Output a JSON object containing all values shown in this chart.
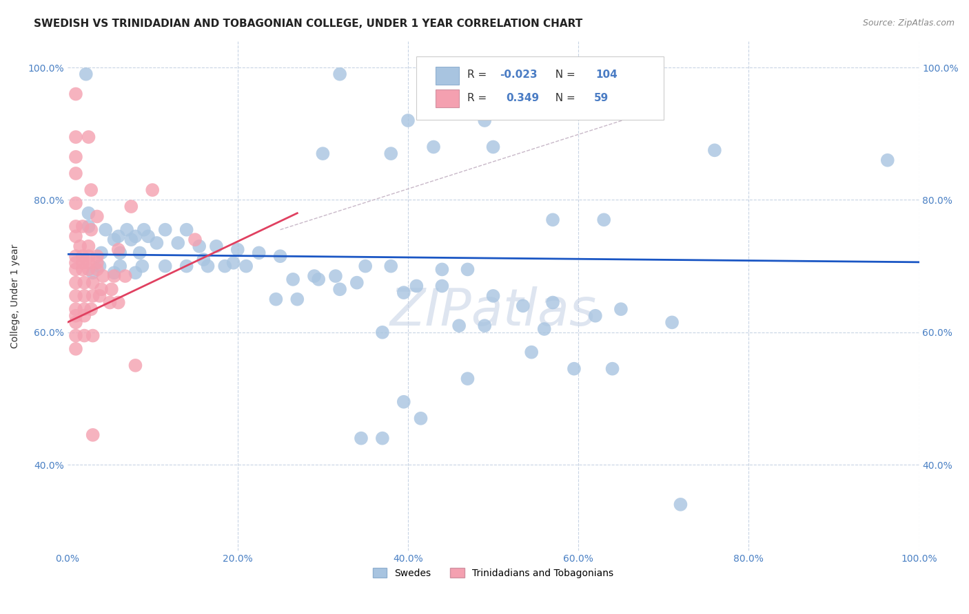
{
  "title": "SWEDISH VS TRINIDADIAN AND TOBAGONIAN COLLEGE, UNDER 1 YEAR CORRELATION CHART",
  "source": "Source: ZipAtlas.com",
  "ylabel": "College, Under 1 year",
  "legend_blue_r": "-0.023",
  "legend_blue_n": "104",
  "legend_pink_r": "0.349",
  "legend_pink_n": "59",
  "blue_color": "#a8c4e0",
  "pink_color": "#f4a0b0",
  "line_blue_color": "#1a56c4",
  "line_pink_color": "#e04060",
  "dash_color": "#c8b8c8",
  "background_color": "#ffffff",
  "grid_color": "#c8d4e4",
  "xlim": [
    0.0,
    1.0
  ],
  "ylim": [
    0.27,
    1.04
  ],
  "xtick_vals": [
    0.0,
    0.2,
    0.4,
    0.6,
    0.8,
    1.0
  ],
  "xtick_labels": [
    "0.0%",
    "20.0%",
    "40.0%",
    "60.0%",
    "80.0%",
    "100.0%"
  ],
  "ytick_vals": [
    0.4,
    0.6,
    0.8,
    1.0
  ],
  "ytick_labels": [
    "40.0%",
    "60.0%",
    "80.0%",
    "100.0%"
  ],
  "blue_scatter": [
    [
      0.022,
      0.99
    ],
    [
      0.32,
      0.99
    ],
    [
      0.4,
      0.92
    ],
    [
      0.49,
      0.92
    ],
    [
      0.43,
      0.88
    ],
    [
      0.5,
      0.88
    ],
    [
      0.76,
      0.875
    ],
    [
      0.3,
      0.87
    ],
    [
      0.38,
      0.87
    ],
    [
      0.025,
      0.78
    ],
    [
      0.57,
      0.77
    ],
    [
      0.63,
      0.77
    ],
    [
      0.025,
      0.76
    ],
    [
      0.045,
      0.755
    ],
    [
      0.07,
      0.755
    ],
    [
      0.09,
      0.755
    ],
    [
      0.115,
      0.755
    ],
    [
      0.14,
      0.755
    ],
    [
      0.06,
      0.745
    ],
    [
      0.08,
      0.745
    ],
    [
      0.095,
      0.745
    ],
    [
      0.055,
      0.74
    ],
    [
      0.075,
      0.74
    ],
    [
      0.105,
      0.735
    ],
    [
      0.13,
      0.735
    ],
    [
      0.155,
      0.73
    ],
    [
      0.175,
      0.73
    ],
    [
      0.2,
      0.725
    ],
    [
      0.04,
      0.72
    ],
    [
      0.062,
      0.72
    ],
    [
      0.085,
      0.72
    ],
    [
      0.225,
      0.72
    ],
    [
      0.25,
      0.715
    ],
    [
      0.16,
      0.71
    ],
    [
      0.195,
      0.705
    ],
    [
      0.038,
      0.7
    ],
    [
      0.062,
      0.7
    ],
    [
      0.088,
      0.7
    ],
    [
      0.115,
      0.7
    ],
    [
      0.14,
      0.7
    ],
    [
      0.165,
      0.7
    ],
    [
      0.185,
      0.7
    ],
    [
      0.21,
      0.7
    ],
    [
      0.35,
      0.7
    ],
    [
      0.38,
      0.7
    ],
    [
      0.44,
      0.695
    ],
    [
      0.47,
      0.695
    ],
    [
      0.03,
      0.69
    ],
    [
      0.055,
      0.69
    ],
    [
      0.08,
      0.69
    ],
    [
      0.29,
      0.685
    ],
    [
      0.315,
      0.685
    ],
    [
      0.265,
      0.68
    ],
    [
      0.295,
      0.68
    ],
    [
      0.34,
      0.675
    ],
    [
      0.41,
      0.67
    ],
    [
      0.44,
      0.67
    ],
    [
      0.32,
      0.665
    ],
    [
      0.395,
      0.66
    ],
    [
      0.5,
      0.655
    ],
    [
      0.245,
      0.65
    ],
    [
      0.27,
      0.65
    ],
    [
      0.57,
      0.645
    ],
    [
      0.535,
      0.64
    ],
    [
      0.65,
      0.635
    ],
    [
      0.62,
      0.625
    ],
    [
      0.71,
      0.615
    ],
    [
      0.46,
      0.61
    ],
    [
      0.49,
      0.61
    ],
    [
      0.56,
      0.605
    ],
    [
      0.37,
      0.6
    ],
    [
      0.545,
      0.57
    ],
    [
      0.595,
      0.545
    ],
    [
      0.64,
      0.545
    ],
    [
      0.47,
      0.53
    ],
    [
      0.395,
      0.495
    ],
    [
      0.415,
      0.47
    ],
    [
      0.345,
      0.44
    ],
    [
      0.37,
      0.44
    ],
    [
      0.72,
      0.34
    ],
    [
      0.963,
      0.86
    ]
  ],
  "pink_scatter": [
    [
      0.01,
      0.96
    ],
    [
      0.01,
      0.895
    ],
    [
      0.025,
      0.895
    ],
    [
      0.01,
      0.865
    ],
    [
      0.01,
      0.84
    ],
    [
      0.028,
      0.815
    ],
    [
      0.1,
      0.815
    ],
    [
      0.01,
      0.795
    ],
    [
      0.075,
      0.79
    ],
    [
      0.035,
      0.775
    ],
    [
      0.01,
      0.76
    ],
    [
      0.018,
      0.76
    ],
    [
      0.028,
      0.755
    ],
    [
      0.01,
      0.745
    ],
    [
      0.15,
      0.74
    ],
    [
      0.015,
      0.73
    ],
    [
      0.025,
      0.73
    ],
    [
      0.06,
      0.725
    ],
    [
      0.01,
      0.715
    ],
    [
      0.018,
      0.715
    ],
    [
      0.025,
      0.715
    ],
    [
      0.035,
      0.715
    ],
    [
      0.01,
      0.705
    ],
    [
      0.018,
      0.705
    ],
    [
      0.025,
      0.705
    ],
    [
      0.035,
      0.705
    ],
    [
      0.01,
      0.695
    ],
    [
      0.018,
      0.695
    ],
    [
      0.025,
      0.695
    ],
    [
      0.035,
      0.695
    ],
    [
      0.042,
      0.685
    ],
    [
      0.055,
      0.685
    ],
    [
      0.068,
      0.685
    ],
    [
      0.01,
      0.675
    ],
    [
      0.02,
      0.675
    ],
    [
      0.03,
      0.675
    ],
    [
      0.04,
      0.665
    ],
    [
      0.052,
      0.665
    ],
    [
      0.01,
      0.655
    ],
    [
      0.02,
      0.655
    ],
    [
      0.03,
      0.655
    ],
    [
      0.038,
      0.655
    ],
    [
      0.05,
      0.645
    ],
    [
      0.06,
      0.645
    ],
    [
      0.01,
      0.635
    ],
    [
      0.02,
      0.635
    ],
    [
      0.028,
      0.635
    ],
    [
      0.01,
      0.625
    ],
    [
      0.02,
      0.625
    ],
    [
      0.01,
      0.615
    ],
    [
      0.01,
      0.595
    ],
    [
      0.02,
      0.595
    ],
    [
      0.03,
      0.595
    ],
    [
      0.01,
      0.575
    ],
    [
      0.08,
      0.55
    ],
    [
      0.03,
      0.445
    ]
  ]
}
